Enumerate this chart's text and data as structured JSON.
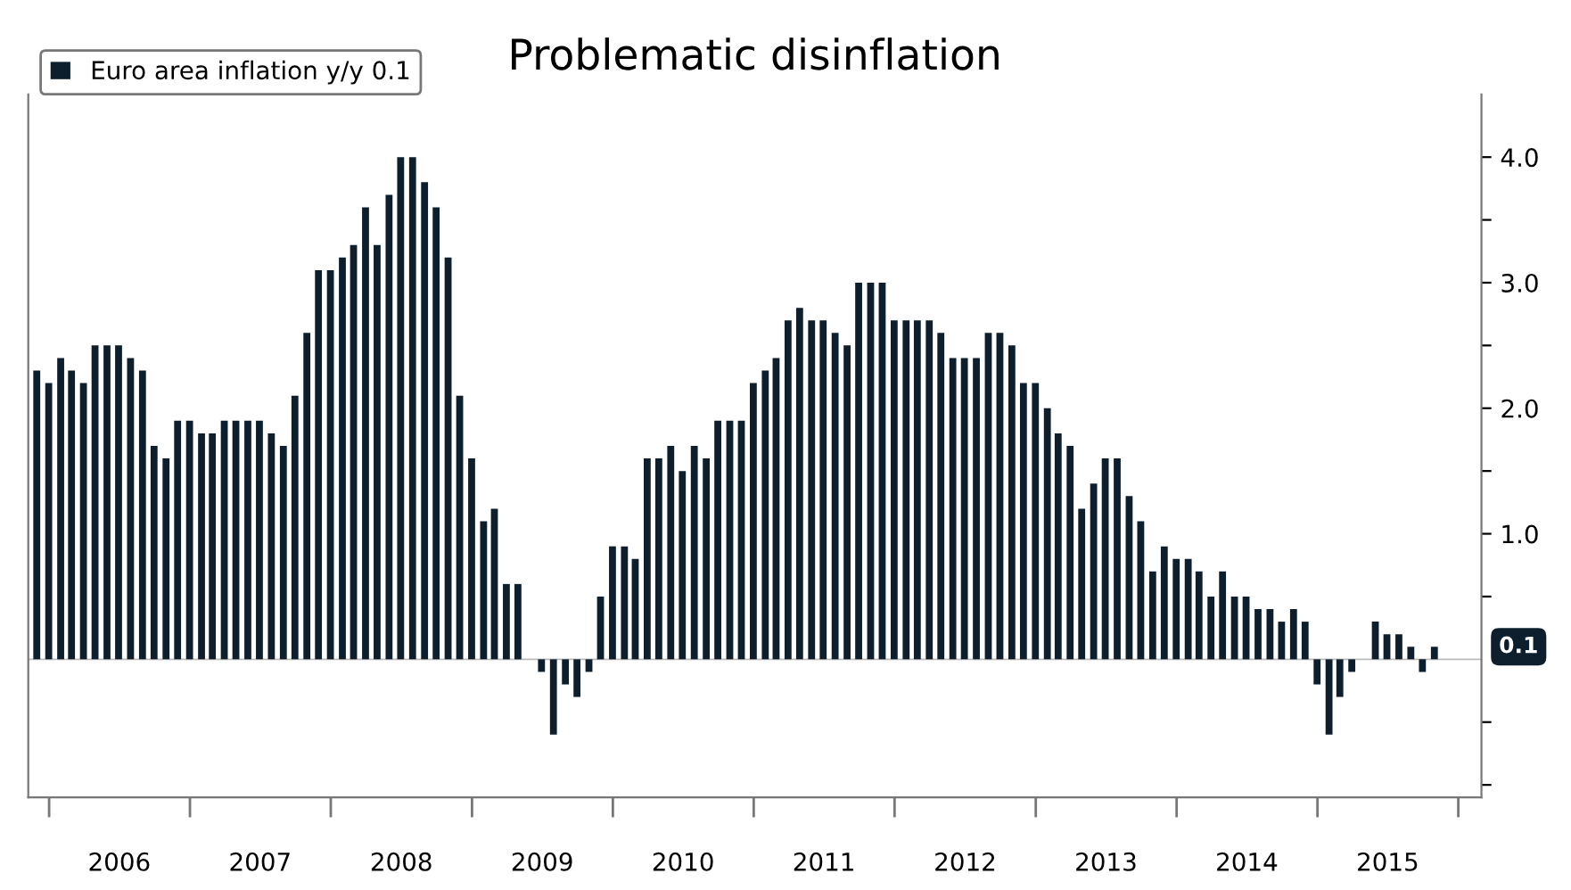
{
  "chart_data": {
    "type": "bar",
    "title": "Problematic disinflation",
    "x": [
      "2005-11-30",
      "2005-12-31",
      "2006-01-31",
      "2006-02-28",
      "2006-03-31",
      "2006-04-30",
      "2006-05-31",
      "2006-06-30",
      "2006-07-31",
      "2006-08-31",
      "2006-09-30",
      "2006-10-31",
      "2006-11-30",
      "2006-12-31",
      "2007-01-31",
      "2007-02-28",
      "2007-03-31",
      "2007-04-30",
      "2007-05-31",
      "2007-06-30",
      "2007-07-31",
      "2007-08-31",
      "2007-09-30",
      "2007-10-31",
      "2007-11-30",
      "2007-12-31",
      "2008-01-31",
      "2008-02-29",
      "2008-03-31",
      "2008-04-30",
      "2008-05-31",
      "2008-06-30",
      "2008-07-31",
      "2008-08-31",
      "2008-09-30",
      "2008-10-31",
      "2008-11-30",
      "2008-12-31",
      "2009-01-31",
      "2009-02-28",
      "2009-03-31",
      "2009-04-30",
      "2009-05-31",
      "2009-06-30",
      "2009-07-31",
      "2009-08-31",
      "2009-09-30",
      "2009-10-31",
      "2009-11-30",
      "2009-12-31",
      "2010-01-31",
      "2010-02-28",
      "2010-03-31",
      "2010-04-30",
      "2010-05-31",
      "2010-06-30",
      "2010-07-31",
      "2010-08-31",
      "2010-09-30",
      "2010-10-31",
      "2010-11-30",
      "2010-12-31",
      "2011-01-31",
      "2011-02-28",
      "2011-03-31",
      "2011-04-30",
      "2011-05-31",
      "2011-06-30",
      "2011-07-31",
      "2011-08-31",
      "2011-09-30",
      "2011-10-31",
      "2011-11-30",
      "2011-12-31",
      "2012-01-31",
      "2012-02-29",
      "2012-03-31",
      "2012-04-30",
      "2012-05-31",
      "2012-06-30",
      "2012-07-31",
      "2012-08-31",
      "2012-09-30",
      "2012-10-31",
      "2012-11-30",
      "2012-12-31",
      "2013-01-31",
      "2013-02-28",
      "2013-03-31",
      "2013-04-30",
      "2013-05-31",
      "2013-06-30",
      "2013-07-31",
      "2013-08-31",
      "2013-09-30",
      "2013-10-31",
      "2013-11-30",
      "2013-12-31",
      "2014-01-31",
      "2014-02-28",
      "2014-03-31",
      "2014-04-30",
      "2014-05-31",
      "2014-06-30",
      "2014-07-31",
      "2014-08-31",
      "2014-09-30",
      "2014-10-31",
      "2014-11-30",
      "2014-12-31",
      "2015-01-31",
      "2015-02-28",
      "2015-03-31",
      "2015-04-30",
      "2015-05-31",
      "2015-06-30",
      "2015-07-31",
      "2015-08-31",
      "2015-09-30",
      "2015-10-31"
    ],
    "series": [
      {
        "name": "Euro area inflation y/y 0.1",
        "color": "#0d1f2d",
        "values": [
          2.3,
          2.2,
          2.4,
          2.3,
          2.2,
          2.5,
          2.5,
          2.5,
          2.4,
          2.3,
          1.7,
          1.6,
          1.9,
          1.9,
          1.8,
          1.8,
          1.9,
          1.9,
          1.9,
          1.9,
          1.8,
          1.7,
          2.1,
          2.6,
          3.1,
          3.1,
          3.2,
          3.3,
          3.6,
          3.3,
          3.7,
          4.0,
          4.0,
          3.8,
          3.6,
          3.2,
          2.1,
          1.6,
          1.1,
          1.2,
          0.6,
          0.6,
          0.0,
          -0.1,
          -0.6,
          -0.2,
          -0.3,
          -0.1,
          0.5,
          0.9,
          0.9,
          0.8,
          1.6,
          1.6,
          1.7,
          1.5,
          1.7,
          1.6,
          1.9,
          1.9,
          1.9,
          2.2,
          2.3,
          2.4,
          2.7,
          2.8,
          2.7,
          2.7,
          2.6,
          2.5,
          3.0,
          3.0,
          3.0,
          2.7,
          2.7,
          2.7,
          2.7,
          2.6,
          2.4,
          2.4,
          2.4,
          2.6,
          2.6,
          2.5,
          2.2,
          2.2,
          2.0,
          1.8,
          1.7,
          1.2,
          1.4,
          1.6,
          1.6,
          1.3,
          1.1,
          0.7,
          0.9,
          0.8,
          0.8,
          0.7,
          0.5,
          0.7,
          0.5,
          0.5,
          0.4,
          0.4,
          0.3,
          0.4,
          0.3,
          -0.2,
          -0.6,
          -0.3,
          -0.1,
          0.0,
          0.3,
          0.2,
          0.2,
          0.1,
          -0.1,
          0.1
        ]
      }
    ],
    "xlim": [
      "2005-11-08",
      "2016-03-01"
    ],
    "xticks": [
      {
        "value": "2006-01-01",
        "label": null
      },
      {
        "value": "2006-07-02",
        "label": "2006"
      },
      {
        "value": "2007-01-01",
        "label": null
      },
      {
        "value": "2007-07-02",
        "label": "2007"
      },
      {
        "value": "2008-01-01",
        "label": null
      },
      {
        "value": "2008-07-02",
        "label": "2008"
      },
      {
        "value": "2009-01-01",
        "label": null
      },
      {
        "value": "2009-07-02",
        "label": "2009"
      },
      {
        "value": "2010-01-01",
        "label": null
      },
      {
        "value": "2010-07-02",
        "label": "2010"
      },
      {
        "value": "2011-01-01",
        "label": null
      },
      {
        "value": "2011-07-02",
        "label": "2011"
      },
      {
        "value": "2012-01-01",
        "label": null
      },
      {
        "value": "2012-07-02",
        "label": "2012"
      },
      {
        "value": "2013-01-01",
        "label": null
      },
      {
        "value": "2013-07-02",
        "label": "2013"
      },
      {
        "value": "2014-01-01",
        "label": null
      },
      {
        "value": "2014-07-02",
        "label": "2014"
      },
      {
        "value": "2015-01-01",
        "label": null
      },
      {
        "value": "2015-07-02",
        "label": "2015"
      },
      {
        "value": "2016-01-01",
        "label": null
      }
    ],
    "ylim": [
      -1.1,
      4.5
    ],
    "yticks": [
      {
        "value": -1.0,
        "label": null
      },
      {
        "value": -0.5,
        "label": null
      },
      {
        "value": 0.5,
        "label": null
      },
      {
        "value": 1.0,
        "label": "1.0"
      },
      {
        "value": 1.5,
        "label": null
      },
      {
        "value": 2.0,
        "label": "2.0"
      },
      {
        "value": 2.5,
        "label": null
      },
      {
        "value": 3.0,
        "label": "3.0"
      },
      {
        "value": 3.5,
        "label": null
      },
      {
        "value": 4.0,
        "label": "4.0"
      }
    ],
    "annotations": [
      {
        "text": "0.1",
        "x": "2015-10-31",
        "y": 0.1
      }
    ],
    "legend": "top left",
    "grid": false
  }
}
